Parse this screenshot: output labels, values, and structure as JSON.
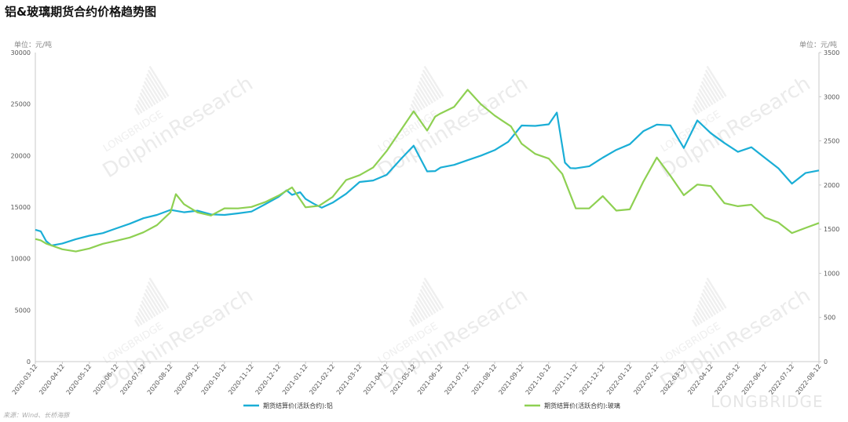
{
  "chart_data": {
    "type": "line",
    "title": "铝&玻璃期货合约价格趋势图",
    "unit_left": "单位：元/吨",
    "unit_right": "单位：元/吨",
    "source": "来源：Wind、长桥海豚",
    "watermark": "DolphinResearch",
    "watermark_small": "LONGBRIDGE",
    "brand": "LONGBRIDGE",
    "y_left": {
      "min": 0,
      "max": 30000,
      "ticks": [
        "0",
        "5000",
        "10000",
        "15000",
        "20000",
        "25000",
        "30000"
      ]
    },
    "y_right": {
      "min": 0,
      "max": 3500,
      "ticks": [
        "0",
        "500",
        "1000",
        "1500",
        "2000",
        "2500",
        "3000",
        "3500"
      ]
    },
    "x_ticks": [
      "2020-03-12",
      "2020-04-12",
      "2020-05-12",
      "2020-06-12",
      "2020-07-12",
      "2020-08-12",
      "2020-09-12",
      "2020-10-12",
      "2020-11-12",
      "2020-12-12",
      "2021-01-12",
      "2021-02-12",
      "2021-03-12",
      "2021-04-12",
      "2021-05-12",
      "2021-06-12",
      "2021-07-12",
      "2021-08-12",
      "2021-09-12",
      "2021-10-12",
      "2021-11-12",
      "2021-12-12",
      "2022-01-12",
      "2022-02-12",
      "2022-03-12",
      "2022-04-12",
      "2022-05-12",
      "2022-06-12",
      "2022-07-12",
      "2022-08-12"
    ],
    "series": [
      {
        "name": "期货结算价(活跃合约):铝",
        "axis": "left",
        "color": "#1aaed6",
        "x": [
          0,
          0.2,
          0.4,
          0.6,
          1,
          1.5,
          2,
          2.5,
          3,
          3.5,
          4,
          4.5,
          5,
          5.5,
          6,
          6.5,
          7,
          7.5,
          8,
          8.5,
          9,
          9.3,
          9.5,
          9.8,
          10,
          10.3,
          10.6,
          11,
          11.5,
          12,
          12.5,
          13,
          13.5,
          14,
          14.5,
          14.8,
          15,
          15.5,
          16,
          16.5,
          17,
          17.5,
          18,
          18.5,
          19,
          19.3,
          19.6,
          19.8,
          20,
          20.5,
          21,
          21.5,
          22,
          22.5,
          23,
          23.5,
          24,
          24.5,
          25,
          25.5,
          26,
          26.5,
          27,
          27.5,
          28,
          28.5,
          29
        ],
        "values": [
          12800,
          12700,
          11800,
          11400,
          11600,
          12000,
          12300,
          12500,
          12900,
          13300,
          13800,
          14100,
          14600,
          14400,
          14600,
          14300,
          14300,
          14500,
          14700,
          15400,
          16100,
          16700,
          16200,
          16400,
          15700,
          15200,
          14800,
          15300,
          16200,
          17400,
          17600,
          18200,
          19700,
          21100,
          18600,
          18600,
          18900,
          19100,
          19500,
          19900,
          20400,
          21200,
          22800,
          22800,
          23000,
          24200,
          19400,
          18900,
          18900,
          19100,
          19900,
          20600,
          21100,
          22300,
          22900,
          22800,
          20600,
          23300,
          22100,
          21200,
          20400,
          20900,
          19900,
          18900,
          17400,
          18400,
          18600
        ]
      },
      {
        "name": "期货结算价(活跃合约):玻璃",
        "axis": "right",
        "color": "#8ed052",
        "x": [
          0,
          0.2,
          0.4,
          0.6,
          1,
          1.5,
          2,
          2.5,
          3,
          3.5,
          4,
          4.5,
          5,
          5.2,
          5.5,
          6,
          6.5,
          7,
          7.5,
          8,
          8.5,
          9,
          9.5,
          10,
          10.5,
          11,
          11.5,
          12,
          12.5,
          13,
          13.5,
          14,
          14.5,
          14.8,
          15,
          15.5,
          16,
          16.5,
          17,
          17.3,
          17.6,
          18,
          18.5,
          19,
          19.5,
          19.8,
          20,
          20.5,
          21,
          21.5,
          22,
          22.5,
          23,
          23.5,
          24,
          24.5,
          25,
          25.5,
          26,
          26.5,
          27,
          27.5,
          28,
          28.5,
          29
        ],
        "values": [
          1380,
          1360,
          1320,
          1300,
          1260,
          1240,
          1280,
          1340,
          1380,
          1420,
          1480,
          1560,
          1700,
          1900,
          1780,
          1680,
          1640,
          1720,
          1720,
          1740,
          1800,
          1880,
          1980,
          1760,
          1780,
          1880,
          2070,
          2120,
          2200,
          2380,
          2600,
          2820,
          2600,
          2760,
          2800,
          2880,
          3080,
          2920,
          2800,
          2740,
          2680,
          2480,
          2360,
          2300,
          2120,
          1880,
          1720,
          1720,
          1860,
          1700,
          1720,
          2040,
          2320,
          2120,
          1900,
          2020,
          2000,
          1800,
          1760,
          1770,
          1620,
          1560,
          1440,
          1500,
          1560
        ]
      }
    ]
  }
}
